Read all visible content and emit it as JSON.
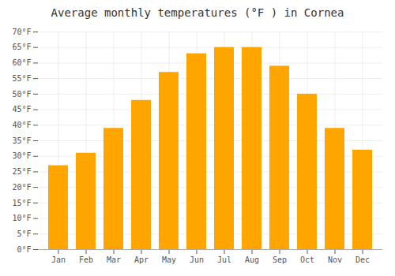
{
  "chart_data": {
    "type": "bar",
    "title": "Average monthly temperatures (°F ) in Cornea",
    "categories": [
      "Jan",
      "Feb",
      "Mar",
      "Apr",
      "May",
      "Jun",
      "Jul",
      "Aug",
      "Sep",
      "Oct",
      "Nov",
      "Dec"
    ],
    "values": [
      27,
      31,
      39,
      48,
      57,
      63,
      65,
      65,
      59,
      50,
      39,
      32
    ],
    "color": "#FFA500",
    "ylim": [
      0,
      70
    ],
    "yticks": [
      {
        "value": 0,
        "label": "0°F"
      },
      {
        "value": 5,
        "label": "5°F"
      },
      {
        "value": 10,
        "label": "10°F"
      },
      {
        "value": 15,
        "label": "15°F"
      },
      {
        "value": 20,
        "label": "20°F"
      },
      {
        "value": 25,
        "label": "25°F"
      },
      {
        "value": 30,
        "label": "30°F"
      },
      {
        "value": 35,
        "label": "35°F"
      },
      {
        "value": 40,
        "label": "40°F"
      },
      {
        "value": 45,
        "label": "45°F"
      },
      {
        "value": 50,
        "label": "50°F"
      },
      {
        "value": 55,
        "label": "55°F"
      },
      {
        "value": 60,
        "label": "60°F"
      },
      {
        "value": 65,
        "label": "65°F"
      },
      {
        "value": 70,
        "label": "70°F"
      }
    ],
    "grid": true
  }
}
